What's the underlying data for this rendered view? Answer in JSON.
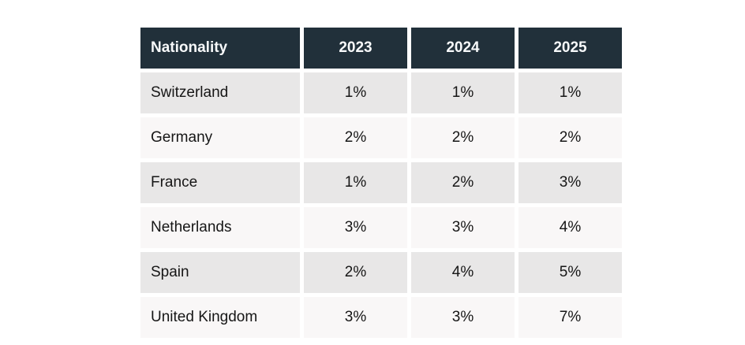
{
  "chart_data": {
    "type": "table",
    "title": "",
    "columns": [
      "Nationality",
      "2023",
      "2024",
      "2025"
    ],
    "rows": [
      {
        "nationality": "Switzerland",
        "values": [
          "1%",
          "1%",
          "1%"
        ]
      },
      {
        "nationality": "Germany",
        "values": [
          "2%",
          "2%",
          "2%"
        ]
      },
      {
        "nationality": "France",
        "values": [
          "1%",
          "2%",
          "3%"
        ]
      },
      {
        "nationality": "Netherlands",
        "values": [
          "3%",
          "3%",
          "4%"
        ]
      },
      {
        "nationality": "Spain",
        "values": [
          "2%",
          "4%",
          "5%"
        ]
      },
      {
        "nationality": "United Kingdom",
        "values": [
          "3%",
          "3%",
          "7%"
        ]
      }
    ],
    "series": [
      {
        "name": "2023",
        "values": [
          1,
          2,
          1,
          3,
          2,
          3
        ]
      },
      {
        "name": "2024",
        "values": [
          1,
          2,
          2,
          3,
          4,
          3
        ]
      },
      {
        "name": "2025",
        "values": [
          1,
          2,
          3,
          4,
          5,
          7
        ]
      }
    ],
    "categories": [
      "Switzerland",
      "Germany",
      "France",
      "Netherlands",
      "Spain",
      "United Kingdom"
    ],
    "value_unit": "%",
    "layout": {
      "header_alignment": {
        "nationality": "left",
        "years": "center"
      },
      "cell_alignment": {
        "nationality": "left",
        "values": "center"
      },
      "row_striping": "alternating"
    },
    "colors": {
      "header_bg": "#21303a",
      "header_text": "#f7f9fa",
      "row_odd_bg": "#e8e7e7",
      "row_even_bg": "#f9f7f7",
      "cell_text": "#161616",
      "page_bg": "#ffffff"
    }
  }
}
